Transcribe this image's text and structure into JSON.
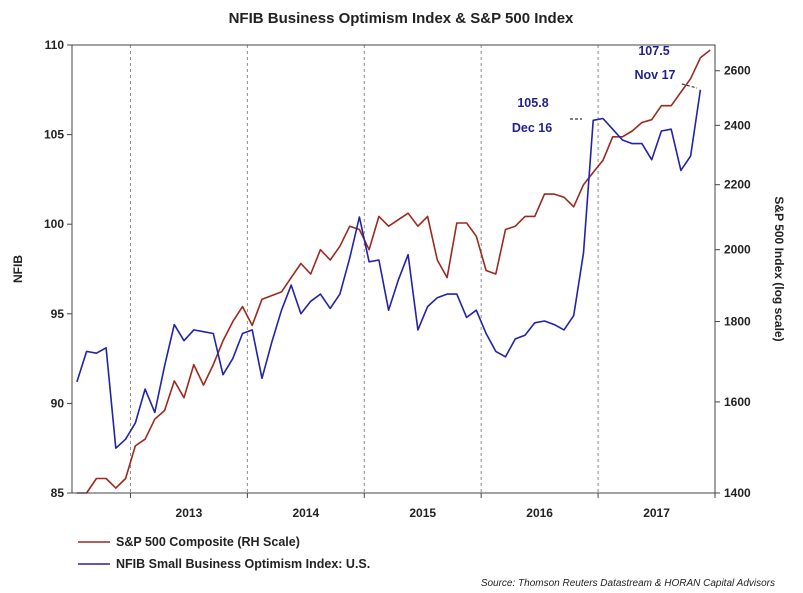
{
  "chart_data": {
    "type": "line",
    "title": "NFIB Business Optimism Index & S&P 500 Index",
    "ylabel_left": "NFIB",
    "ylabel_right": "S&P 500 Index (log scale)",
    "y_left_range": [
      85,
      110
    ],
    "y_left_ticks": [
      85,
      90,
      95,
      100,
      105,
      110
    ],
    "y_right_range": [
      1400,
      2700
    ],
    "y_right_scale": "log",
    "y_right_ticks": [
      1400,
      1600,
      1800,
      2000,
      2200,
      2400,
      2600
    ],
    "x_tick_labels": [
      "2013",
      "2014",
      "2015",
      "2016",
      "2017"
    ],
    "grid": "vertical dashed at year boundaries",
    "legend_position": "bottom-left",
    "series": [
      {
        "name": "S&P 500 Composite (RH Scale)",
        "axis": "right",
        "color": "#9b2a1e",
        "points": [
          [
            "2012-07",
            1380
          ],
          [
            "2012-08",
            1400
          ],
          [
            "2012-09",
            1430
          ],
          [
            "2012-10",
            1430
          ],
          [
            "2012-11",
            1410
          ],
          [
            "2012-12",
            1430
          ],
          [
            "2013-01",
            1500
          ],
          [
            "2013-02",
            1515
          ],
          [
            "2013-03",
            1560
          ],
          [
            "2013-04",
            1580
          ],
          [
            "2013-05",
            1650
          ],
          [
            "2013-06",
            1610
          ],
          [
            "2013-07",
            1690
          ],
          [
            "2013-08",
            1640
          ],
          [
            "2013-09",
            1690
          ],
          [
            "2013-10",
            1750
          ],
          [
            "2013-11",
            1800
          ],
          [
            "2013-12",
            1840
          ],
          [
            "2014-01",
            1790
          ],
          [
            "2014-02",
            1860
          ],
          [
            "2014-03",
            1870
          ],
          [
            "2014-04",
            1880
          ],
          [
            "2014-05",
            1920
          ],
          [
            "2014-06",
            1960
          ],
          [
            "2014-07",
            1930
          ],
          [
            "2014-08",
            2000
          ],
          [
            "2014-09",
            1970
          ],
          [
            "2014-10",
            2010
          ],
          [
            "2014-11",
            2070
          ],
          [
            "2014-12",
            2060
          ],
          [
            "2015-01",
            2000
          ],
          [
            "2015-02",
            2100
          ],
          [
            "2015-03",
            2070
          ],
          [
            "2015-04",
            2090
          ],
          [
            "2015-05",
            2110
          ],
          [
            "2015-06",
            2070
          ],
          [
            "2015-07",
            2100
          ],
          [
            "2015-08",
            1970
          ],
          [
            "2015-09",
            1920
          ],
          [
            "2015-10",
            2080
          ],
          [
            "2015-11",
            2080
          ],
          [
            "2015-12",
            2040
          ],
          [
            "2016-01",
            1940
          ],
          [
            "2016-02",
            1930
          ],
          [
            "2016-03",
            2060
          ],
          [
            "2016-04",
            2070
          ],
          [
            "2016-05",
            2100
          ],
          [
            "2016-06",
            2100
          ],
          [
            "2016-07",
            2170
          ],
          [
            "2016-08",
            2170
          ],
          [
            "2016-09",
            2160
          ],
          [
            "2016-10",
            2130
          ],
          [
            "2016-11",
            2200
          ],
          [
            "2016-12",
            2240
          ],
          [
            "2017-01",
            2280
          ],
          [
            "2017-02",
            2360
          ],
          [
            "2017-03",
            2360
          ],
          [
            "2017-04",
            2380
          ],
          [
            "2017-05",
            2410
          ],
          [
            "2017-06",
            2420
          ],
          [
            "2017-07",
            2470
          ],
          [
            "2017-08",
            2470
          ],
          [
            "2017-09",
            2520
          ],
          [
            "2017-10",
            2570
          ],
          [
            "2017-11",
            2650
          ],
          [
            "2017-12",
            2680
          ]
        ]
      },
      {
        "name": "NFIB Small Business Optimism Index: U.S.",
        "axis": "left",
        "color": "#2222aa",
        "points": [
          [
            "2012-07",
            91.2
          ],
          [
            "2012-08",
            92.9
          ],
          [
            "2012-09",
            92.8
          ],
          [
            "2012-10",
            93.1
          ],
          [
            "2012-11",
            87.5
          ],
          [
            "2012-12",
            88.0
          ],
          [
            "2013-01",
            88.9
          ],
          [
            "2013-02",
            90.8
          ],
          [
            "2013-03",
            89.5
          ],
          [
            "2013-04",
            92.1
          ],
          [
            "2013-05",
            94.4
          ],
          [
            "2013-06",
            93.5
          ],
          [
            "2013-07",
            94.1
          ],
          [
            "2013-08",
            94.0
          ],
          [
            "2013-09",
            93.9
          ],
          [
            "2013-10",
            91.6
          ],
          [
            "2013-11",
            92.5
          ],
          [
            "2013-12",
            93.9
          ],
          [
            "2014-01",
            94.1
          ],
          [
            "2014-02",
            91.4
          ],
          [
            "2014-03",
            93.4
          ],
          [
            "2014-04",
            95.2
          ],
          [
            "2014-05",
            96.6
          ],
          [
            "2014-06",
            95.0
          ],
          [
            "2014-07",
            95.7
          ],
          [
            "2014-08",
            96.1
          ],
          [
            "2014-09",
            95.3
          ],
          [
            "2014-10",
            96.1
          ],
          [
            "2014-11",
            98.1
          ],
          [
            "2014-12",
            100.4
          ],
          [
            "2015-01",
            97.9
          ],
          [
            "2015-02",
            98.0
          ],
          [
            "2015-03",
            95.2
          ],
          [
            "2015-04",
            96.9
          ],
          [
            "2015-05",
            98.3
          ],
          [
            "2015-06",
            94.1
          ],
          [
            "2015-07",
            95.4
          ],
          [
            "2015-08",
            95.9
          ],
          [
            "2015-09",
            96.1
          ],
          [
            "2015-10",
            96.1
          ],
          [
            "2015-11",
            94.8
          ],
          [
            "2015-12",
            95.2
          ],
          [
            "2016-01",
            93.9
          ],
          [
            "2016-02",
            92.9
          ],
          [
            "2016-03",
            92.6
          ],
          [
            "2016-04",
            93.6
          ],
          [
            "2016-05",
            93.8
          ],
          [
            "2016-06",
            94.5
          ],
          [
            "2016-07",
            94.6
          ],
          [
            "2016-08",
            94.4
          ],
          [
            "2016-09",
            94.1
          ],
          [
            "2016-10",
            94.9
          ],
          [
            "2016-11",
            98.4
          ],
          [
            "2016-12",
            105.8
          ],
          [
            "2017-01",
            105.9
          ],
          [
            "2017-02",
            105.3
          ],
          [
            "2017-03",
            104.7
          ],
          [
            "2017-04",
            104.5
          ],
          [
            "2017-05",
            104.5
          ],
          [
            "2017-06",
            103.6
          ],
          [
            "2017-07",
            105.2
          ],
          [
            "2017-08",
            105.3
          ],
          [
            "2017-09",
            103.0
          ],
          [
            "2017-10",
            103.8
          ],
          [
            "2017-11",
            107.5
          ]
        ]
      }
    ],
    "annotations": [
      {
        "value_label": "105.8",
        "date_label": "Dec 16",
        "date": "2016-12",
        "value": 105.8
      },
      {
        "value_label": "107.5",
        "date_label": "Nov 17",
        "date": "2017-11",
        "value": 107.5
      }
    ],
    "source": "Source: Thomson Reuters Datastream & HORAN Capital Advisors"
  }
}
